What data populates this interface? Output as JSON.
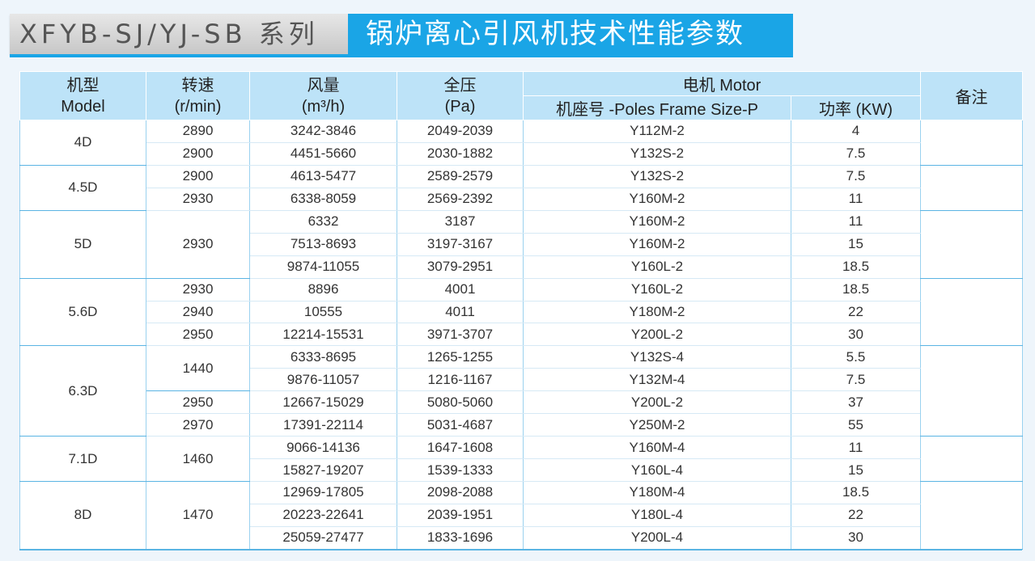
{
  "title": {
    "series": "XFYB-SJ/YJ-SB 系列",
    "name": "锅炉离心引风机技术性能参数"
  },
  "headers": {
    "model": [
      "机型",
      "Model"
    ],
    "speed": [
      "转速",
      "(r/min)"
    ],
    "airflow": [
      "风量",
      "(m³/h)"
    ],
    "pressure": [
      "全压",
      "(Pa)"
    ],
    "motor": "电机 Motor",
    "frame": "机座号 -Poles Frame Size-P",
    "power": "功率 (KW)",
    "remark": "备注"
  },
  "groups": [
    {
      "model": "4D",
      "rows": [
        {
          "speed": "2890",
          "airflow": "3242-3846",
          "pressure": "2049-2039",
          "frame": "Y112M-2",
          "power": "4"
        },
        {
          "speed": "2900",
          "airflow": "4451-5660",
          "pressure": "2030-1882",
          "frame": "Y132S-2",
          "power": "7.5"
        }
      ]
    },
    {
      "model": "4.5D",
      "rows": [
        {
          "speed": "2900",
          "airflow": "4613-5477",
          "pressure": "2589-2579",
          "frame": "Y132S-2",
          "power": "7.5"
        },
        {
          "speed": "2930",
          "airflow": "6338-8059",
          "pressure": "2569-2392",
          "frame": "Y160M-2",
          "power": "11"
        }
      ]
    },
    {
      "model": "5D",
      "speed": "2930",
      "rows": [
        {
          "airflow": "6332",
          "pressure": "3187",
          "frame": "Y160M-2",
          "power": "11"
        },
        {
          "airflow": "7513-8693",
          "pressure": "3197-3167",
          "frame": "Y160M-2",
          "power": "15"
        },
        {
          "airflow": "9874-11055",
          "pressure": "3079-2951",
          "frame": "Y160L-2",
          "power": "18.5"
        }
      ]
    },
    {
      "model": "5.6D",
      "rows": [
        {
          "speed": "2930",
          "airflow": "8896",
          "pressure": "4001",
          "frame": "Y160L-2",
          "power": "18.5"
        },
        {
          "speed": "2940",
          "airflow": "10555",
          "pressure": "4011",
          "frame": "Y180M-2",
          "power": "22"
        },
        {
          "speed": "2950",
          "airflow": "12214-15531",
          "pressure": "3971-3707",
          "frame": "Y200L-2",
          "power": "30"
        }
      ]
    },
    {
      "model": "6.3D",
      "speed_groups": [
        {
          "speed": "1440",
          "rows": [
            {
              "airflow": "6333-8695",
              "pressure": "1265-1255",
              "frame": "Y132S-4",
              "power": "5.5"
            },
            {
              "airflow": "9876-11057",
              "pressure": "1216-1167",
              "frame": "Y132M-4",
              "power": "7.5"
            }
          ]
        },
        {
          "speed": "2950",
          "rows": [
            {
              "airflow": "12667-15029",
              "pressure": "5080-5060",
              "frame": "Y200L-2",
              "power": "37"
            }
          ]
        },
        {
          "speed": "2970",
          "rows": [
            {
              "airflow": "17391-22114",
              "pressure": "5031-4687",
              "frame": "Y250M-2",
              "power": "55"
            }
          ]
        }
      ]
    },
    {
      "model": "7.1D",
      "speed": "1460",
      "rows": [
        {
          "airflow": "9066-14136",
          "pressure": "1647-1608",
          "frame": "Y160M-4",
          "power": "11"
        },
        {
          "airflow": "15827-19207",
          "pressure": "1539-1333",
          "frame": "Y160L-4",
          "power": "15"
        }
      ]
    },
    {
      "model": "8D",
      "speed": "1470",
      "rows": [
        {
          "airflow": "12969-17805",
          "pressure": "2098-2088",
          "frame": "Y180M-4",
          "power": "18.5"
        },
        {
          "airflow": "20223-22641",
          "pressure": "2039-1951",
          "frame": "Y180L-4",
          "power": "22"
        },
        {
          "airflow": "25059-27477",
          "pressure": "1833-1696",
          "frame": "Y200L-4",
          "power": "30"
        }
      ]
    }
  ]
}
